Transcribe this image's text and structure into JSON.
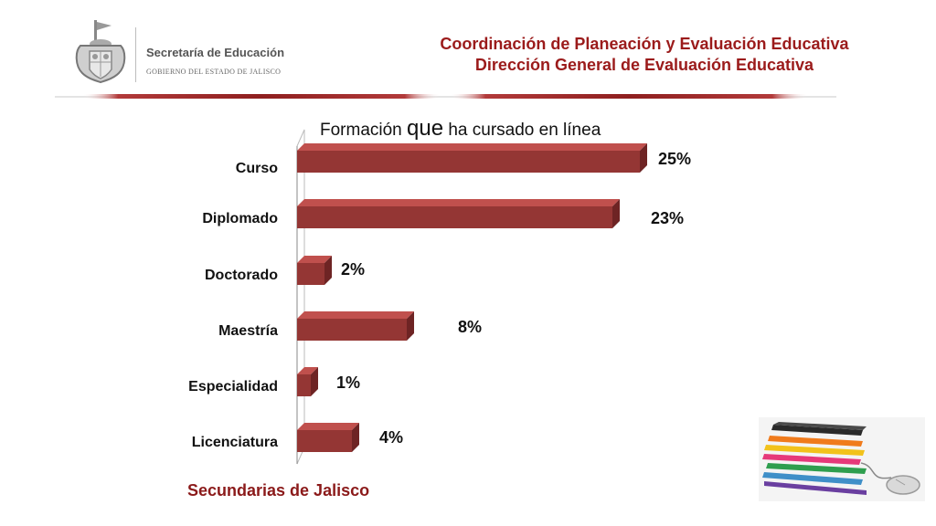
{
  "header": {
    "line1": "Coordinación de Planeación y Evaluación Educativa",
    "line2": "Dirección General de Evaluación Educativa"
  },
  "logo": {
    "name": "Secretaría de Educación",
    "subtitle": "GOBIERNO DEL ESTADO DE JALISCO"
  },
  "chart_data": {
    "type": "bar",
    "orientation": "horizontal",
    "title_prefix": "Formación",
    "title_emphasis": "que",
    "title_suffix": "ha cursado en línea",
    "categories": [
      "Curso",
      "Diplomado",
      "Doctorado",
      "Maestría",
      "Especialidad",
      "Licenciatura"
    ],
    "values": [
      25,
      23,
      2,
      8,
      1,
      4
    ],
    "value_labels": [
      "25%",
      "23%",
      "2%",
      "8%",
      "1%",
      "4%"
    ],
    "unit": "%",
    "xlim": [
      0,
      25
    ],
    "grid": false,
    "bar_color": "#943634"
  },
  "footer": {
    "label": "Secundarias de Jalisco"
  },
  "colors": {
    "accent": "#9b1b1b",
    "bar": "#943634",
    "bar_top": "#c0504d",
    "bar_side": "#6e2424"
  }
}
